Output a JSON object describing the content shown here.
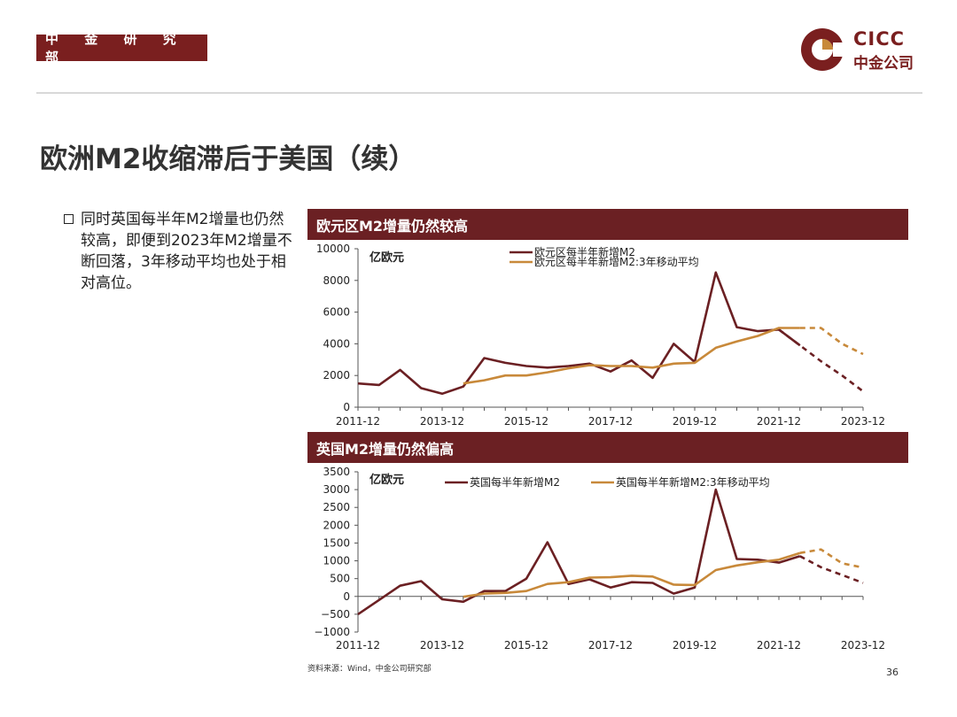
{
  "header": {
    "dept": "中 金 研 究 部",
    "logo_en": "CICC",
    "logo_cn": "中金公司"
  },
  "title": "欧洲M2收缩滞后于美国（续）",
  "bullet": "同时英国每半年M2增量也仍然较高，即便到2023年M2增量不断回落，3年移动平均也处于相对高位。",
  "colors": {
    "brand": "#7a1f1f",
    "series_main": "#6b2023",
    "series_avg": "#c8893a"
  },
  "chart_data": [
    {
      "type": "line",
      "title": "欧元区M2增量仍然较高",
      "unit_label": "亿欧元",
      "ylim": [
        0,
        10000
      ],
      "yticks": [
        0,
        2000,
        4000,
        6000,
        8000,
        10000
      ],
      "ytick_labels": [
        "0",
        "2000",
        "4000",
        "6000",
        "8000",
        "10000"
      ],
      "xlim": [
        0,
        24
      ],
      "xtick_labels": [
        "2011-12",
        "2013-12",
        "2015-12",
        "2017-12",
        "2019-12",
        "2021-12",
        "2023-12"
      ],
      "series": [
        {
          "name": "欧元区每半年新增M2",
          "color": "#6b2023",
          "values": [
            1500,
            1400,
            2350,
            1200,
            850,
            1300,
            3100,
            2800,
            2600,
            2500,
            2600,
            2750,
            2250,
            2950,
            1850,
            4000,
            2850,
            8500,
            5050,
            4800,
            4900,
            3900,
            null,
            null,
            null
          ],
          "projection": [
            [
              20,
              4900
            ],
            [
              21,
              3900
            ],
            [
              22,
              2900
            ],
            [
              23,
              2000
            ],
            [
              24,
              1000
            ]
          ]
        },
        {
          "name": "欧元区每半年新增M2:3年移动平均",
          "color": "#c8893a",
          "values": [
            null,
            null,
            null,
            null,
            null,
            1500,
            1700,
            2000,
            2000,
            2200,
            2450,
            2650,
            2600,
            2600,
            2500,
            2750,
            2800,
            3750,
            4150,
            4500,
            5000,
            5000,
            null,
            null,
            null
          ],
          "projection": [
            [
              21,
              5000
            ],
            [
              22,
              5000
            ],
            [
              23,
              4000
            ],
            [
              24,
              3350
            ]
          ]
        }
      ]
    },
    {
      "type": "line",
      "title": "英国M2增量仍然偏高",
      "unit_label": "亿欧元",
      "ylim": [
        -1000,
        3500
      ],
      "yticks": [
        -1000,
        -500,
        0,
        500,
        1000,
        1500,
        2000,
        2500,
        3000,
        3500
      ],
      "ytick_labels": [
        "−1000",
        "−500",
        "0",
        "500",
        "1000",
        "1500",
        "2000",
        "2500",
        "3000",
        "3500"
      ],
      "xlim": [
        0,
        24
      ],
      "xtick_labels": [
        "2011-12",
        "2013-12",
        "2015-12",
        "2017-12",
        "2019-12",
        "2021-12",
        "2023-12"
      ],
      "series": [
        {
          "name": "英国每半年新增M2",
          "color": "#6b2023",
          "values": [
            -500,
            -100,
            300,
            430,
            -80,
            -150,
            150,
            150,
            500,
            1520,
            350,
            480,
            250,
            400,
            380,
            80,
            250,
            3000,
            1050,
            1030,
            950,
            1130,
            null,
            null,
            null
          ],
          "projection": [
            [
              21,
              1130
            ],
            [
              22,
              820
            ],
            [
              23,
              600
            ],
            [
              24,
              380
            ]
          ]
        },
        {
          "name": "英国每半年新增M2:3年移动平均",
          "color": "#c8893a",
          "values": [
            null,
            null,
            null,
            null,
            null,
            -10,
            80,
            100,
            150,
            350,
            400,
            530,
            540,
            580,
            560,
            330,
            320,
            740,
            870,
            960,
            1030,
            1220,
            null,
            null,
            null
          ],
          "projection": [
            [
              21,
              1220
            ],
            [
              22,
              1320
            ],
            [
              23,
              930
            ],
            [
              24,
              810
            ]
          ]
        }
      ]
    }
  ],
  "source": "资料来源：Wind，中金公司研究部",
  "page_number": "36"
}
